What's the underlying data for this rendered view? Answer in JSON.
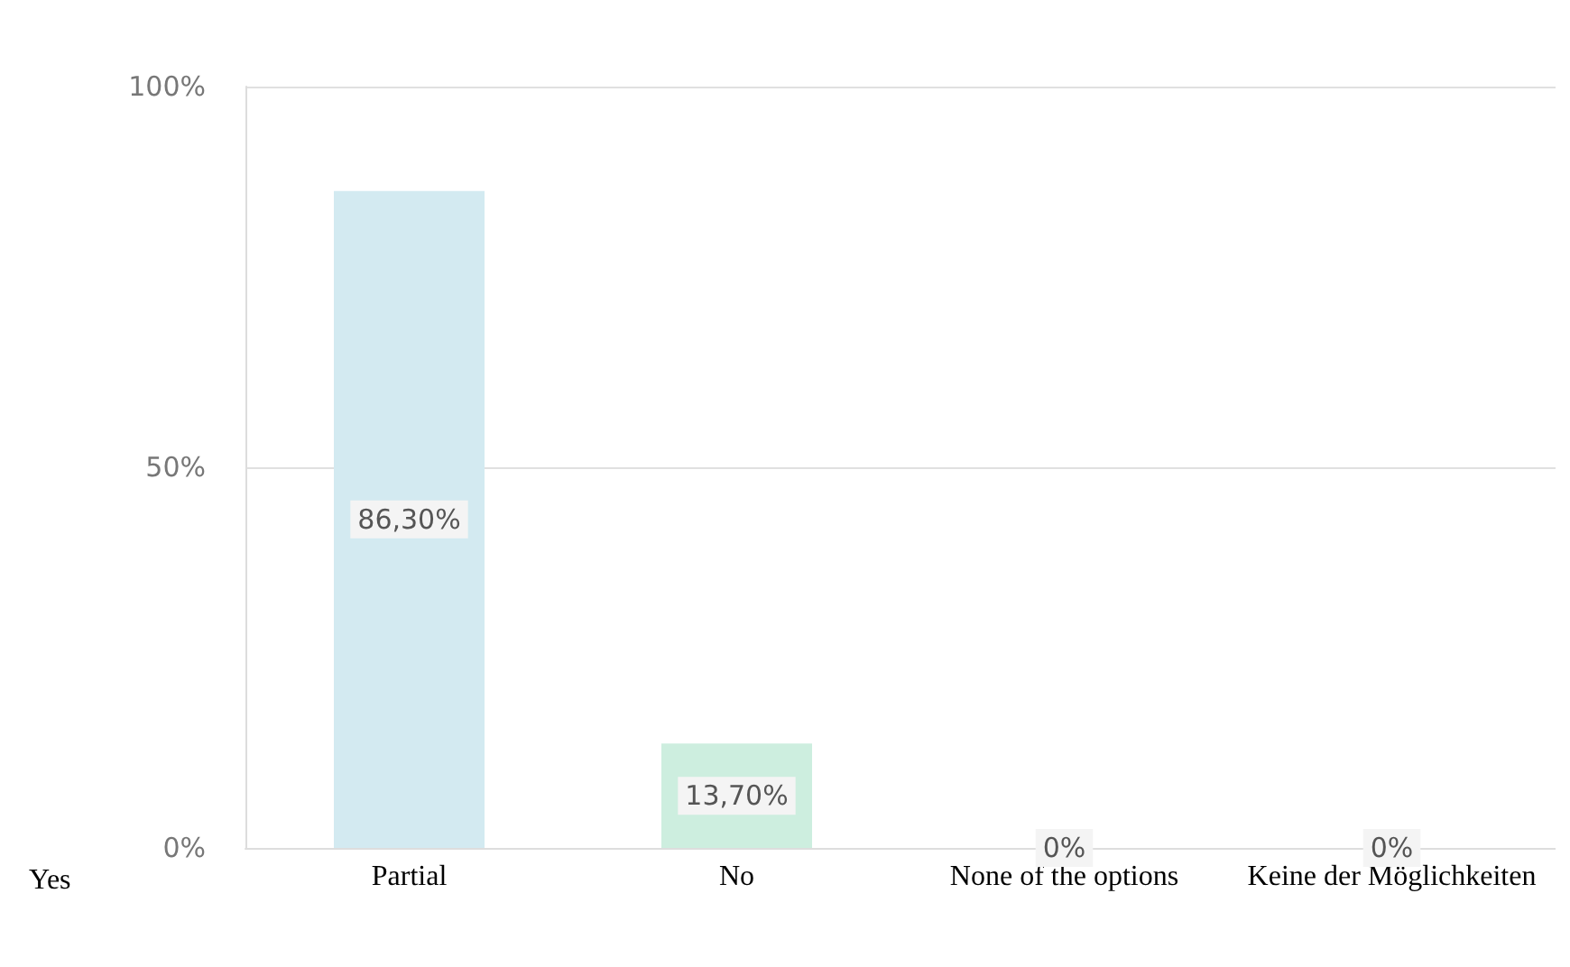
{
  "chart_data": {
    "type": "bar",
    "categories": [
      "Partial",
      "No",
      "None of the options",
      "Keine der Möglichkeiten"
    ],
    "values": [
      86.3,
      13.7,
      0,
      0
    ],
    "colors": [
      "#d3eaf1",
      "#cdeedf",
      "#8f8f8f",
      "#c9c6bc"
    ],
    "value_labels": [
      "86,30%",
      "13,70%",
      "0%",
      "0%"
    ],
    "ylim": [
      0,
      100
    ],
    "yticks": [
      {
        "value": 0,
        "label": "0%"
      },
      {
        "value": 50,
        "label": "50%"
      },
      {
        "value": 100,
        "label": "100%"
      }
    ],
    "grid": "y",
    "annotations": [
      "Yes"
    ]
  }
}
